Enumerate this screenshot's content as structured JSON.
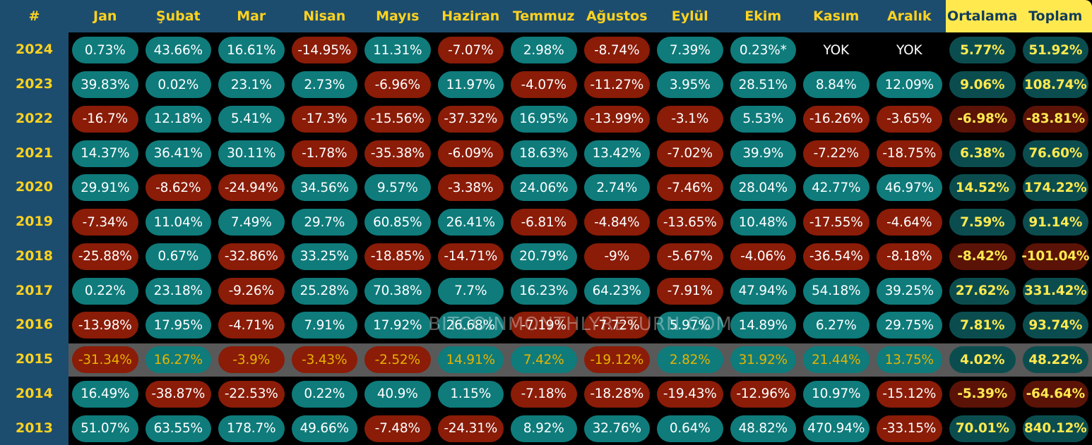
{
  "table": {
    "header": [
      "#",
      "Jan",
      "Şubat",
      "Mar",
      "Nisan",
      "Mayıs",
      "Haziran",
      "Temmuz",
      "Ağustos",
      "Eylül",
      "Ekim",
      "Kasım",
      "Aralık",
      "Ortalama",
      "Toplam"
    ],
    "rows": [
      [
        "2024",
        "0.73%",
        "43.66%",
        "16.61%",
        "-14.95%",
        "11.31%",
        "-7.07%",
        "2.98%",
        "-8.74%",
        "7.39%",
        "0.23%*",
        "YOK",
        "YOK",
        "5.77%",
        "51.92%"
      ],
      [
        "2023",
        "39.83%",
        "0.02%",
        "23.1%",
        "2.73%",
        "-6.96%",
        "11.97%",
        "-4.07%",
        "-11.27%",
        "3.95%",
        "28.51%",
        "8.84%",
        "12.09%",
        "9.06%",
        "108.74%"
      ],
      [
        "2022",
        "-16.7%",
        "12.18%",
        "5.41%",
        "-17.3%",
        "-15.56%",
        "-37.32%",
        "16.95%",
        "-13.99%",
        "-3.1%",
        "5.53%",
        "-16.26%",
        "-3.65%",
        "-6.98%",
        "-83.81%"
      ],
      [
        "2021",
        "14.37%",
        "36.41%",
        "30.11%",
        "-1.78%",
        "-35.38%",
        "-6.09%",
        "18.63%",
        "13.42%",
        "-7.02%",
        "39.9%",
        "-7.22%",
        "-18.75%",
        "6.38%",
        "76.60%"
      ],
      [
        "2020",
        "29.91%",
        "-8.62%",
        "-24.94%",
        "34.56%",
        "9.57%",
        "-3.38%",
        "24.06%",
        "2.74%",
        "-7.46%",
        "28.04%",
        "42.77%",
        "46.97%",
        "14.52%",
        "174.22%"
      ],
      [
        "2019",
        "-7.34%",
        "11.04%",
        "7.49%",
        "29.7%",
        "60.85%",
        "26.41%",
        "-6.81%",
        "-4.84%",
        "-13.65%",
        "10.48%",
        "-17.55%",
        "-4.64%",
        "7.59%",
        "91.14%"
      ],
      [
        "2018",
        "-25.88%",
        "0.67%",
        "-32.86%",
        "33.25%",
        "-18.85%",
        "-14.71%",
        "20.79%",
        "-9%",
        "-5.67%",
        "-4.06%",
        "-36.54%",
        "-8.18%",
        "-8.42%",
        "-101.04%"
      ],
      [
        "2017",
        "0.22%",
        "23.18%",
        "-9.26%",
        "25.28%",
        "70.38%",
        "7.7%",
        "16.23%",
        "64.23%",
        "-7.91%",
        "47.94%",
        "54.18%",
        "39.25%",
        "27.62%",
        "331.42%"
      ],
      [
        "2016",
        "-13.98%",
        "17.95%",
        "-4.71%",
        "7.91%",
        "17.92%",
        "26.68%",
        "-7.19%",
        "-7.72%",
        "5.97%",
        "14.89%",
        "6.27%",
        "29.75%",
        "7.81%",
        "93.74%"
      ],
      [
        "2015",
        "-31.34%",
        "16.27%",
        "-3.9%",
        "-3.43%",
        "-2.52%",
        "14.91%",
        "7.42%",
        "-19.12%",
        "2.82%",
        "31.92%",
        "21.44%",
        "13.75%",
        "4.02%",
        "48.22%"
      ],
      [
        "2014",
        "16.49%",
        "-38.87%",
        "-22.53%",
        "0.22%",
        "40.9%",
        "1.15%",
        "-7.18%",
        "-18.28%",
        "-19.43%",
        "-12.96%",
        "10.97%",
        "-15.12%",
        "-5.39%",
        "-64.64%"
      ],
      [
        "2013",
        "51.07%",
        "63.55%",
        "178.7%",
        "49.66%",
        "-7.48%",
        "-24.31%",
        "8.92%",
        "32.76%",
        "0.64%",
        "48.82%",
        "470.94%",
        "-33.15%",
        "70.01%",
        "840.12%"
      ]
    ]
  },
  "watermark": "BITCOINMONTHLYRETURN.COM"
}
